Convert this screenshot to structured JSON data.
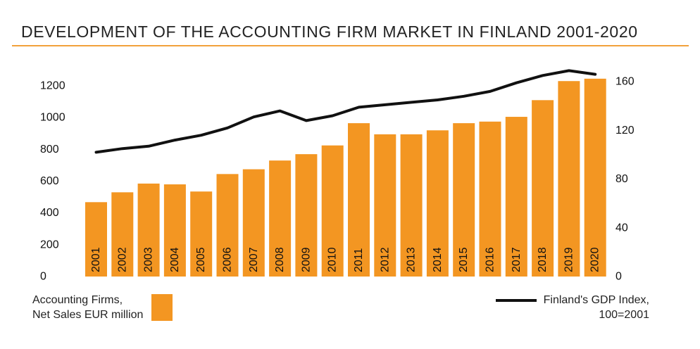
{
  "chart_data": {
    "type": "bar+line",
    "title": "DEVELOPMENT OF THE ACCOUNTING FIRM MARKET IN FINLAND 2001-2020",
    "categories": [
      "2001",
      "2002",
      "2003",
      "2004",
      "2005",
      "2006",
      "2007",
      "2008",
      "2009",
      "2010",
      "2011",
      "2012",
      "2013",
      "2014",
      "2015",
      "2016",
      "2017",
      "2018",
      "2019",
      "2020"
    ],
    "series": [
      {
        "name": "Accounting Firms, Net Sales EUR million",
        "legend_lines": [
          "Accounting Firms,",
          "Net Sales EUR million"
        ],
        "kind": "bar",
        "axis": "left",
        "color": "#f39622",
        "values": [
          468,
          530,
          585,
          580,
          535,
          645,
          675,
          730,
          770,
          825,
          965,
          895,
          895,
          920,
          965,
          975,
          1005,
          1110,
          1230,
          1245
        ]
      },
      {
        "name": "Finland's GDP Index, 100=2001",
        "legend_lines": [
          "Finland's GDP Index,",
          "100=2001"
        ],
        "kind": "line",
        "axis": "right",
        "color": "#111111",
        "values": [
          102,
          105,
          107,
          112,
          116,
          122,
          131,
          136,
          128,
          132,
          139,
          141,
          143,
          145,
          148,
          152,
          159,
          165,
          169,
          166
        ]
      }
    ],
    "left_axis": {
      "ticks": [
        "0",
        "200",
        "400",
        "600",
        "800",
        "1000",
        "1200"
      ],
      "ylim": [
        0,
        1200
      ]
    },
    "right_axis": {
      "ticks": [
        "0",
        "40",
        "80",
        "120",
        "160"
      ],
      "ylim": [
        0,
        160
      ]
    },
    "grid": false,
    "legend_placement": "bottom"
  }
}
